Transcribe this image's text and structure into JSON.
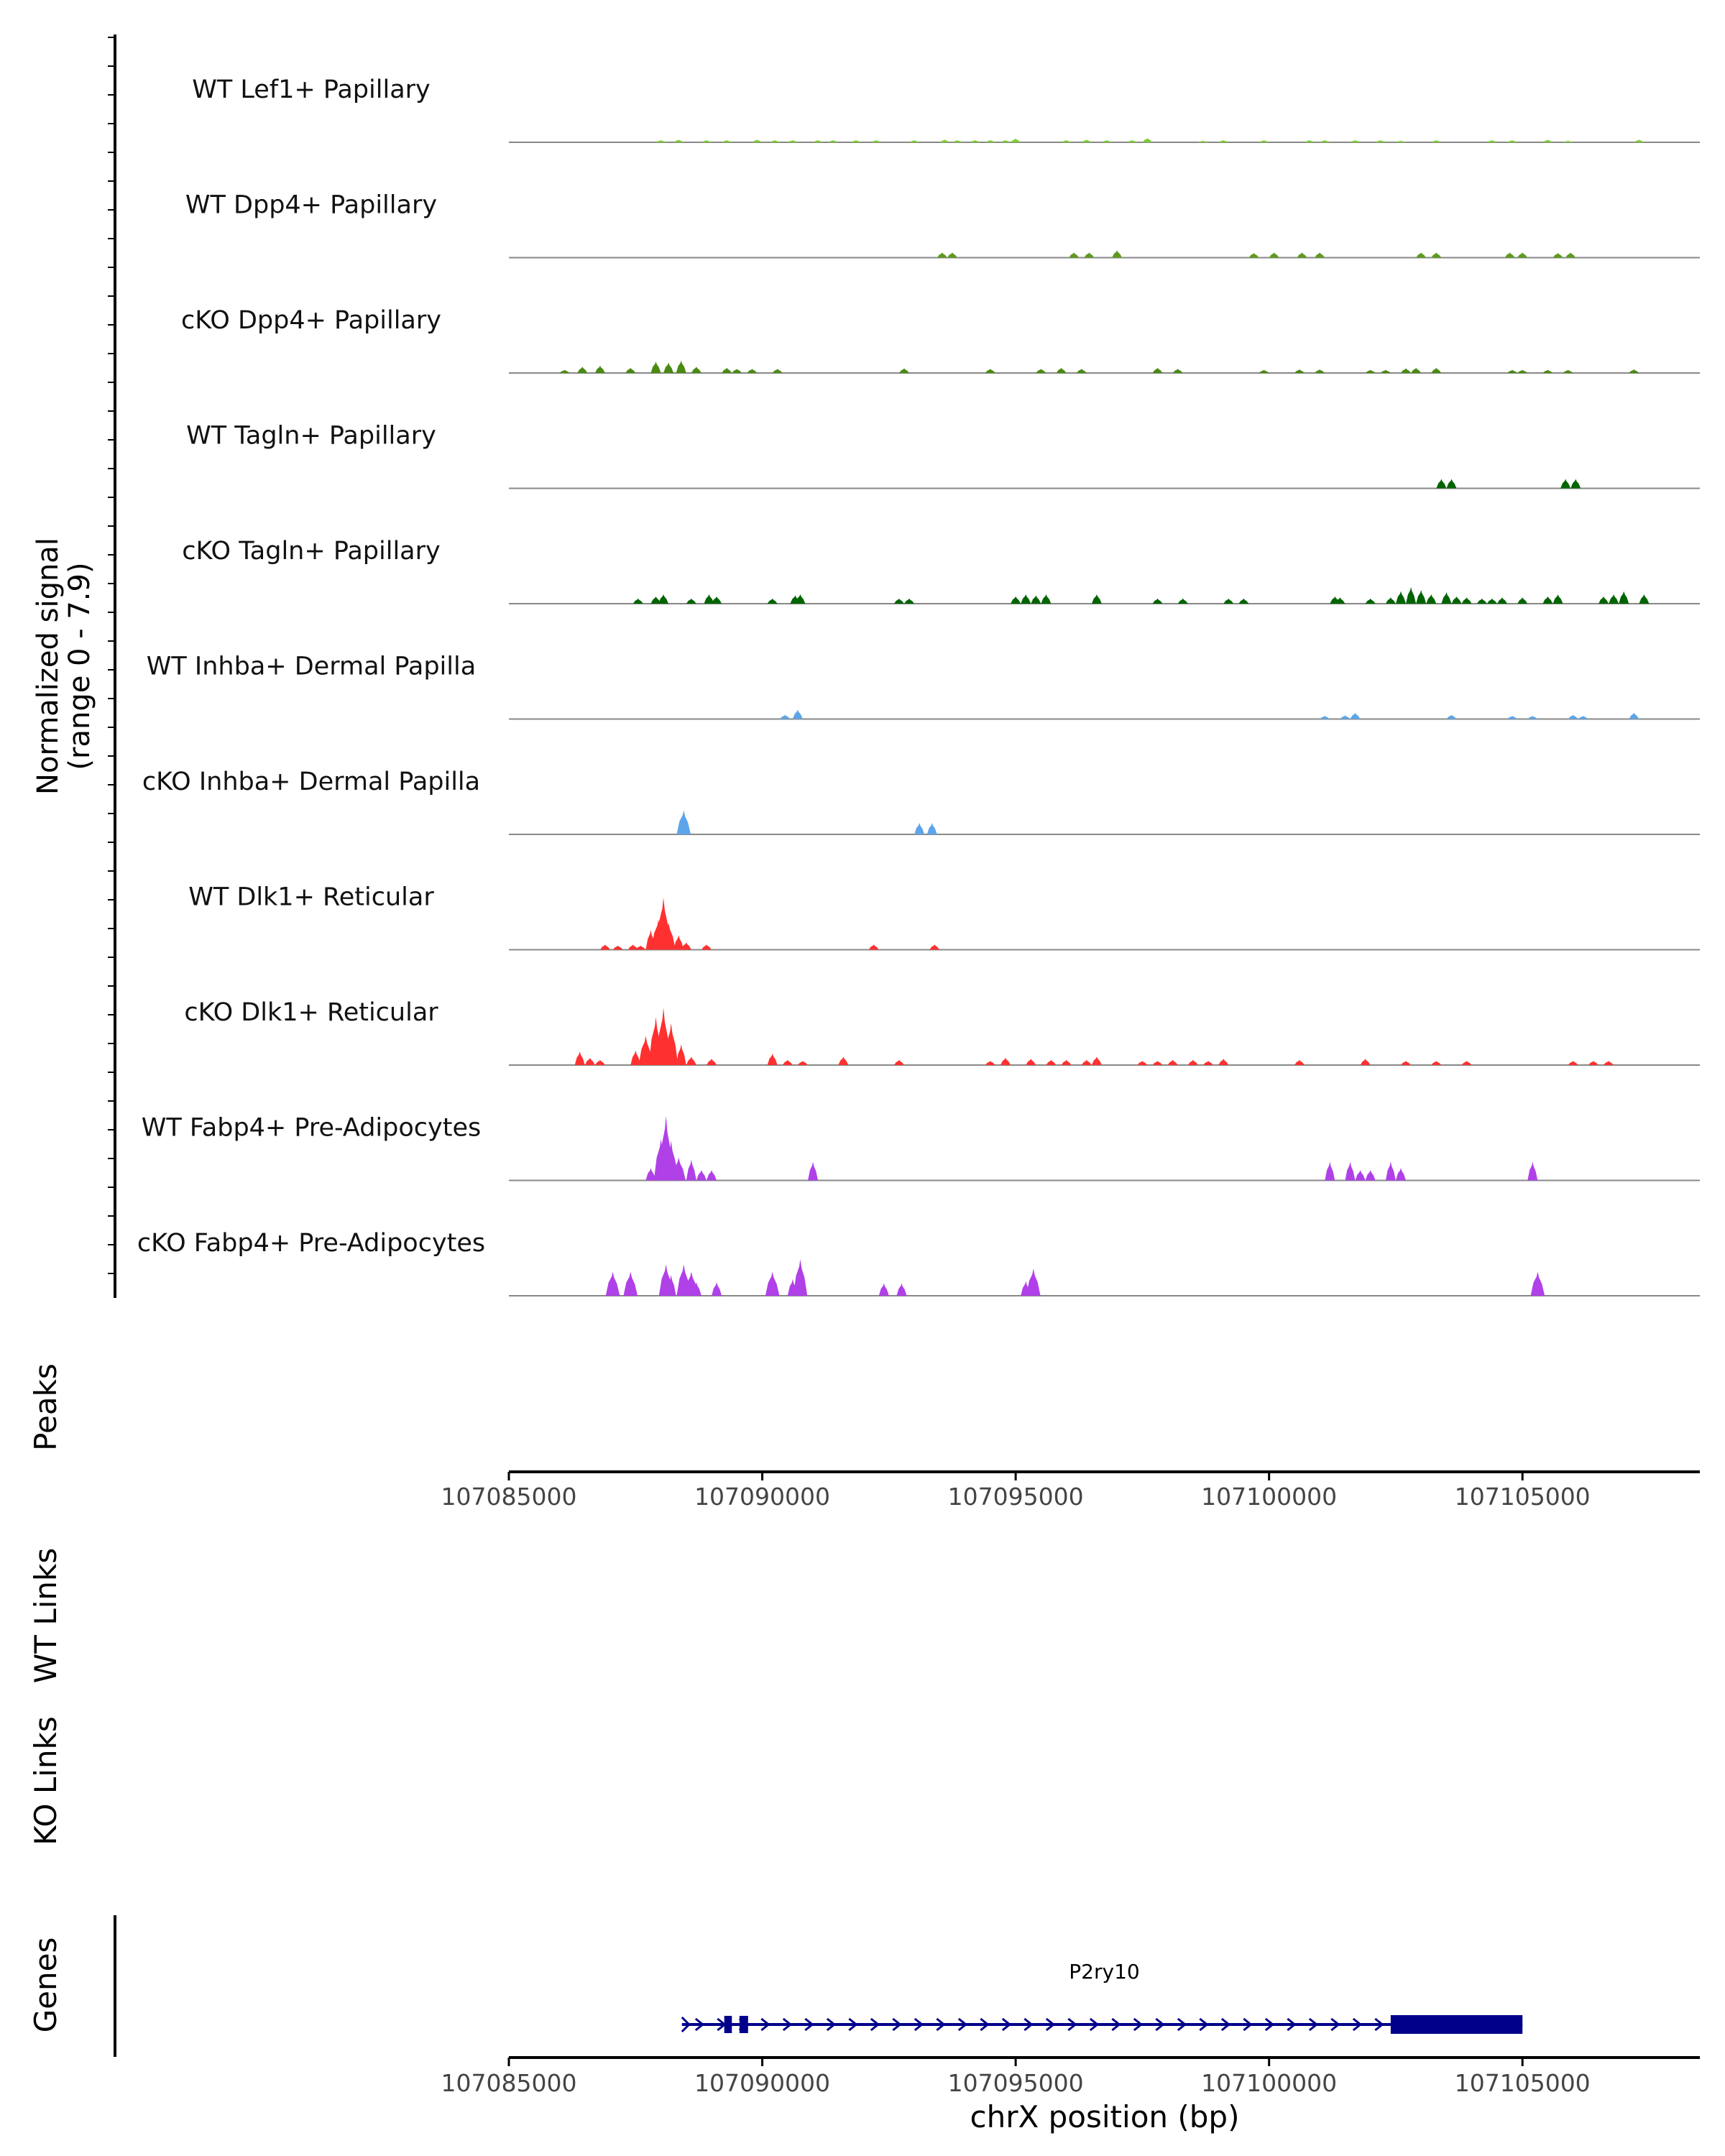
{
  "chart_data": {
    "type": "area",
    "title": "",
    "chromosome": "chrX",
    "xrange": [
      107085000,
      107108500
    ],
    "x_ticks": [
      107085000,
      107090000,
      107095000,
      107100000,
      107105000
    ],
    "x_tick_labels": [
      "107085000",
      "107090000",
      "107095000",
      "107100000",
      "107105000"
    ],
    "xlabel": "chrX position (bp)",
    "ylabel_line1": "Normalized signal",
    "ylabel_line2": "(range 0 - 7.9)",
    "yrange": [
      0,
      7.9
    ],
    "baseline_color": "#888888",
    "series": [
      {
        "name": "WT Lef1+ Papillary",
        "color": "#7CCD32",
        "peaks": [
          [
            107088000,
            0.2
          ],
          [
            107088350,
            0.25
          ],
          [
            107088900,
            0.2
          ],
          [
            107089300,
            0.2
          ],
          [
            107089900,
            0.25
          ],
          [
            107090250,
            0.2
          ],
          [
            107090600,
            0.2
          ],
          [
            107091100,
            0.2
          ],
          [
            107091400,
            0.2
          ],
          [
            107091850,
            0.2
          ],
          [
            107092250,
            0.2
          ],
          [
            107093000,
            0.2
          ],
          [
            107093600,
            0.25
          ],
          [
            107093850,
            0.2
          ],
          [
            107094200,
            0.2
          ],
          [
            107094500,
            0.2
          ],
          [
            107094800,
            0.2
          ],
          [
            107095000,
            0.35
          ],
          [
            107096000,
            0.2
          ],
          [
            107096400,
            0.25
          ],
          [
            107096800,
            0.2
          ],
          [
            107097300,
            0.2
          ],
          [
            107097600,
            0.4
          ],
          [
            107098700,
            0.15
          ],
          [
            107099100,
            0.2
          ],
          [
            107099900,
            0.2
          ],
          [
            107100800,
            0.2
          ],
          [
            107101100,
            0.2
          ],
          [
            107101700,
            0.2
          ],
          [
            107102200,
            0.2
          ],
          [
            107102600,
            0.15
          ],
          [
            107103300,
            0.2
          ],
          [
            107104400,
            0.2
          ],
          [
            107104800,
            0.2
          ],
          [
            107105500,
            0.25
          ],
          [
            107105900,
            0.15
          ],
          [
            107107300,
            0.25
          ]
        ]
      },
      {
        "name": "WT Dpp4+ Papillary",
        "color": "#5E9A1E",
        "peaks": [
          [
            107093550,
            0.5
          ],
          [
            107093750,
            0.5
          ],
          [
            107096150,
            0.5
          ],
          [
            107096450,
            0.5
          ],
          [
            107097000,
            0.7
          ],
          [
            107099700,
            0.45
          ],
          [
            107100100,
            0.5
          ],
          [
            107100650,
            0.5
          ],
          [
            107101000,
            0.5
          ],
          [
            107103000,
            0.5
          ],
          [
            107103300,
            0.5
          ],
          [
            107104750,
            0.5
          ],
          [
            107105000,
            0.5
          ],
          [
            107105700,
            0.45
          ],
          [
            107105950,
            0.5
          ]
        ]
      },
      {
        "name": "cKO Dpp4+ Papillary",
        "color": "#4A8A12",
        "peaks": [
          [
            107086100,
            0.3
          ],
          [
            107086450,
            0.6
          ],
          [
            107086800,
            0.7
          ],
          [
            107087400,
            0.5
          ],
          [
            107087900,
            1.1
          ],
          [
            107088150,
            1.0
          ],
          [
            107088400,
            1.2
          ],
          [
            107088700,
            0.6
          ],
          [
            107089300,
            0.5
          ],
          [
            107089500,
            0.4
          ],
          [
            107089800,
            0.4
          ],
          [
            107090300,
            0.4
          ],
          [
            107092800,
            0.45
          ],
          [
            107094500,
            0.4
          ],
          [
            107095500,
            0.4
          ],
          [
            107095900,
            0.5
          ],
          [
            107096300,
            0.4
          ],
          [
            107097800,
            0.5
          ],
          [
            107098200,
            0.4
          ],
          [
            107099900,
            0.3
          ],
          [
            107100600,
            0.35
          ],
          [
            107101000,
            0.35
          ],
          [
            107102000,
            0.3
          ],
          [
            107102300,
            0.3
          ],
          [
            107102700,
            0.45
          ],
          [
            107102900,
            0.5
          ],
          [
            107103300,
            0.5
          ],
          [
            107104800,
            0.3
          ],
          [
            107105000,
            0.3
          ],
          [
            107105500,
            0.3
          ],
          [
            107105900,
            0.3
          ],
          [
            107107200,
            0.35
          ]
        ]
      },
      {
        "name": "WT Tagln+ Papillary",
        "color": "#006400",
        "peaks": [
          [
            107103400,
            0.9
          ],
          [
            107103600,
            0.9
          ],
          [
            107105850,
            0.9
          ],
          [
            107106050,
            0.9
          ]
        ]
      },
      {
        "name": "cKO Tagln+ Papillary",
        "color": "#006400",
        "peaks": [
          [
            107087550,
            0.5
          ],
          [
            107087900,
            0.7
          ],
          [
            107088050,
            0.9
          ],
          [
            107088600,
            0.5
          ],
          [
            107088950,
            0.9
          ],
          [
            107089100,
            0.7
          ],
          [
            107090200,
            0.5
          ],
          [
            107090650,
            0.8
          ],
          [
            107090750,
            0.9
          ],
          [
            107092700,
            0.5
          ],
          [
            107092900,
            0.5
          ],
          [
            107095000,
            0.7
          ],
          [
            107095200,
            0.9
          ],
          [
            107095400,
            0.8
          ],
          [
            107095600,
            0.9
          ],
          [
            107096600,
            0.9
          ],
          [
            107097800,
            0.5
          ],
          [
            107098300,
            0.5
          ],
          [
            107099200,
            0.5
          ],
          [
            107099500,
            0.5
          ],
          [
            107101300,
            0.7
          ],
          [
            107101400,
            0.6
          ],
          [
            107102000,
            0.5
          ],
          [
            107102400,
            0.6
          ],
          [
            107102600,
            1.2
          ],
          [
            107102800,
            1.6
          ],
          [
            107103000,
            1.3
          ],
          [
            107103200,
            0.9
          ],
          [
            107103500,
            1.1
          ],
          [
            107103700,
            0.7
          ],
          [
            107103900,
            0.6
          ],
          [
            107104200,
            0.5
          ],
          [
            107104400,
            0.5
          ],
          [
            107104600,
            0.6
          ],
          [
            107105000,
            0.6
          ],
          [
            107105500,
            0.7
          ],
          [
            107105700,
            0.9
          ],
          [
            107106600,
            0.7
          ],
          [
            107106800,
            0.9
          ],
          [
            107107000,
            1.2
          ],
          [
            107107400,
            0.9
          ]
        ]
      },
      {
        "name": "WT Inhba+ Dermal Papilla",
        "color": "#5DA5E8",
        "peaks": [
          [
            107090450,
            0.4
          ],
          [
            107090700,
            0.9
          ],
          [
            107101100,
            0.3
          ],
          [
            107101500,
            0.35
          ],
          [
            107101700,
            0.6
          ],
          [
            107103600,
            0.4
          ],
          [
            107104800,
            0.3
          ],
          [
            107105200,
            0.3
          ],
          [
            107106000,
            0.4
          ],
          [
            107106200,
            0.3
          ],
          [
            107107200,
            0.6
          ]
        ]
      },
      {
        "name": "cKO Inhba+ Dermal Papilla",
        "color": "#5DA5E8",
        "peaks": [
          [
            107088450,
            2.3
          ],
          [
            107093100,
            1.1
          ],
          [
            107093350,
            1.1
          ]
        ]
      },
      {
        "name": "WT Dlk1+ Reticular",
        "color": "#FF3030",
        "peaks": [
          [
            107086900,
            0.5
          ],
          [
            107087150,
            0.4
          ],
          [
            107087450,
            0.5
          ],
          [
            107087600,
            0.4
          ],
          [
            107087800,
            1.9
          ],
          [
            107087950,
            2.9
          ],
          [
            107088050,
            5.0
          ],
          [
            107088150,
            2.6
          ],
          [
            107088350,
            1.4
          ],
          [
            107088500,
            0.7
          ],
          [
            107088900,
            0.5
          ],
          [
            107092200,
            0.5
          ],
          [
            107093400,
            0.5
          ]
        ]
      },
      {
        "name": "cKO Dlk1+ Reticular",
        "color": "#FF3030",
        "peaks": [
          [
            107086400,
            1.3
          ],
          [
            107086600,
            0.7
          ],
          [
            107086800,
            0.5
          ],
          [
            107087500,
            1.4
          ],
          [
            107087700,
            2.8
          ],
          [
            107087900,
            4.6
          ],
          [
            107088050,
            5.5
          ],
          [
            107088200,
            4.0
          ],
          [
            107088400,
            2.0
          ],
          [
            107088600,
            0.8
          ],
          [
            107089000,
            0.6
          ],
          [
            107090200,
            1.1
          ],
          [
            107090500,
            0.5
          ],
          [
            107090800,
            0.4
          ],
          [
            107091600,
            0.8
          ],
          [
            107092700,
            0.5
          ],
          [
            107094500,
            0.4
          ],
          [
            107094800,
            0.7
          ],
          [
            107095300,
            0.6
          ],
          [
            107095700,
            0.5
          ],
          [
            107096000,
            0.5
          ],
          [
            107096400,
            0.5
          ],
          [
            107096600,
            0.8
          ],
          [
            107097500,
            0.4
          ],
          [
            107097800,
            0.4
          ],
          [
            107098100,
            0.5
          ],
          [
            107098500,
            0.5
          ],
          [
            107098800,
            0.4
          ],
          [
            107099100,
            0.6
          ],
          [
            107100600,
            0.5
          ],
          [
            107101900,
            0.6
          ],
          [
            107102700,
            0.4
          ],
          [
            107103300,
            0.4
          ],
          [
            107103900,
            0.4
          ],
          [
            107106000,
            0.4
          ],
          [
            107106400,
            0.4
          ],
          [
            107106700,
            0.4
          ]
        ]
      },
      {
        "name": "WT Fabp4+ Pre-Adipocytes",
        "color": "#B040E8",
        "peaks": [
          [
            107087800,
            1.2
          ],
          [
            107088000,
            4.0
          ],
          [
            107088100,
            6.2
          ],
          [
            107088200,
            3.8
          ],
          [
            107088350,
            2.2
          ],
          [
            107088600,
            2.0
          ],
          [
            107088800,
            1.0
          ],
          [
            107089000,
            1.0
          ],
          [
            107091000,
            1.8
          ],
          [
            107101200,
            1.8
          ],
          [
            107101600,
            1.8
          ],
          [
            107101800,
            1.0
          ],
          [
            107102000,
            1.0
          ],
          [
            107102400,
            1.8
          ],
          [
            107102600,
            1.2
          ],
          [
            107105200,
            1.8
          ]
        ]
      },
      {
        "name": "cKO Fabp4+ Pre-Adipocytes",
        "color": "#B040E8",
        "peaks": [
          [
            107087050,
            2.3
          ],
          [
            107087400,
            2.3
          ],
          [
            107088100,
            3.0
          ],
          [
            107088200,
            2.0
          ],
          [
            107088450,
            3.0
          ],
          [
            107088600,
            2.3
          ],
          [
            107088700,
            1.3
          ],
          [
            107089100,
            1.3
          ],
          [
            107090200,
            2.3
          ],
          [
            107090600,
            1.6
          ],
          [
            107090750,
            3.5
          ],
          [
            107092400,
            1.2
          ],
          [
            107092750,
            1.2
          ],
          [
            107095200,
            1.4
          ],
          [
            107095350,
            2.6
          ],
          [
            107105300,
            2.3
          ]
        ]
      }
    ],
    "track_labels": {
      "peaks": "Peaks",
      "wt_links": "WT Links",
      "ko_links": "KO Links",
      "genes": "Genes"
    },
    "gene": {
      "name": "P2ry10",
      "strand": "+",
      "color": "#00008B",
      "start": 107088500,
      "end": 107105000,
      "exons": [
        [
          107089250,
          107089400
        ],
        [
          107089550,
          107089720
        ],
        [
          107102400,
          107105000
        ]
      ]
    }
  }
}
